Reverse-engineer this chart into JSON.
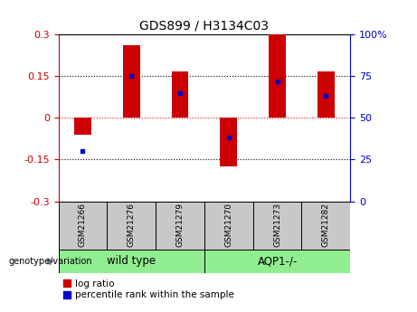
{
  "title": "GDS899 / H3134C03",
  "samples": [
    "GSM21266",
    "GSM21276",
    "GSM21279",
    "GSM21270",
    "GSM21273",
    "GSM21282"
  ],
  "log_ratios": [
    -0.06,
    0.26,
    0.165,
    -0.175,
    0.3,
    0.165
  ],
  "percentile_ranks": [
    30,
    75,
    65,
    38,
    72,
    63
  ],
  "ylim_left": [
    -0.3,
    0.3
  ],
  "ylim_right": [
    0,
    100
  ],
  "yticks_left": [
    -0.3,
    -0.15,
    0,
    0.15,
    0.3
  ],
  "yticks_right": [
    0,
    25,
    50,
    75,
    100
  ],
  "bar_color": "#CC0000",
  "dot_color": "#0000CC",
  "bar_width": 0.35,
  "left_tick_color": "#CC0000",
  "right_tick_color": "#0000CC",
  "legend_labels": [
    "log ratio",
    "percentile rank within the sample"
  ],
  "genotype_label": "genotype/variation",
  "group_labels": [
    "wild type",
    "AQP1-/-"
  ],
  "group_colors": [
    "#90EE90",
    "#90EE90"
  ],
  "sample_box_color": "#C8C8C8",
  "right_ytick_labels": [
    "0",
    "25",
    "50",
    "75",
    "100%"
  ]
}
